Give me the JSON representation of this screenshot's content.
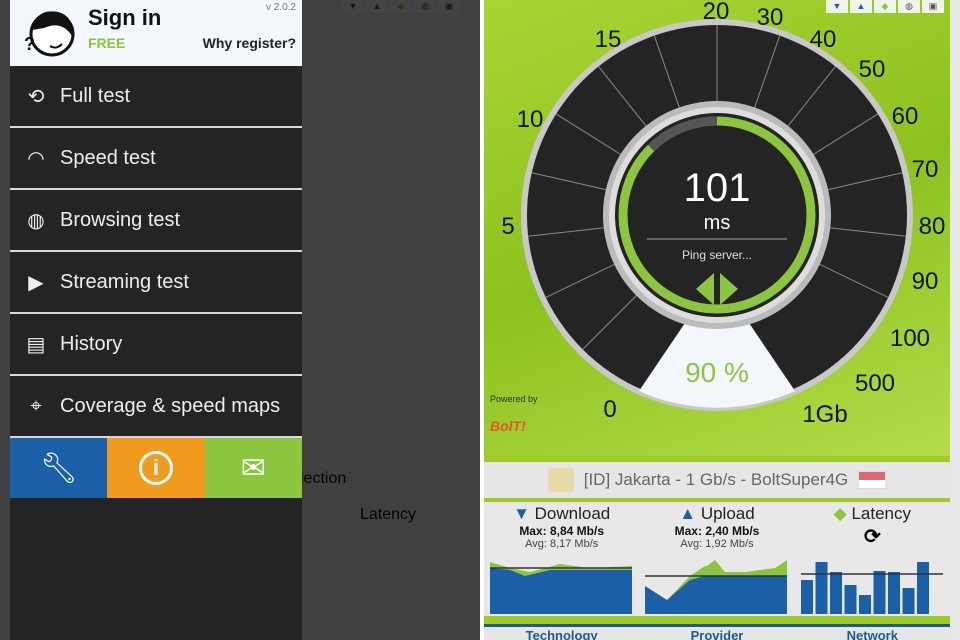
{
  "gauge": {
    "ticks": [
      "0",
      "5",
      "10",
      "15",
      "20",
      "30",
      "40",
      "50",
      "60",
      "70",
      "80",
      "90",
      "100",
      "500",
      "1Gb"
    ],
    "value": "101",
    "unit": "ms",
    "status": "Ping server...",
    "progress_percent": 90,
    "progress_label": "90 %",
    "powered_by": "Powered by",
    "brand": "BolT!"
  },
  "toolbar": [
    "download-icon",
    "upload-icon",
    "latency-icon",
    "globe-icon",
    "screen-icon"
  ],
  "server": {
    "label": "[ID] Jakarta - 1 Gb/s - BoltSuper4G"
  },
  "stats": {
    "download": {
      "label": "Download",
      "max": "Max: 8,84 Mb/s",
      "avg": "Avg: 8,17 Mb/s"
    },
    "upload": {
      "label": "Upload",
      "max": "Max: 2,40 Mb/s",
      "avg": "Avg: 1,92 Mb/s"
    },
    "latency": {
      "label": "Latency"
    }
  },
  "footer": [
    "Technology",
    "Provider",
    "Network"
  ],
  "behind": {
    "selection": "lection",
    "latency": "Latency",
    "network": "Network"
  },
  "drawer": {
    "title": "Sign in",
    "plan": "FREE",
    "version": "v 2.0.2",
    "why": "Why register?",
    "items": [
      {
        "label": "Full test"
      },
      {
        "label": "Speed test"
      },
      {
        "label": "Browsing test"
      },
      {
        "label": "Streaming test"
      },
      {
        "label": "History"
      },
      {
        "label": "Coverage & speed maps"
      }
    ],
    "buttons": [
      "settings",
      "info",
      "mail"
    ]
  },
  "colors": {
    "green": "#8cc63f",
    "blue": "#1a5fa8",
    "orange": "#f09b1e",
    "dark": "#242424"
  }
}
